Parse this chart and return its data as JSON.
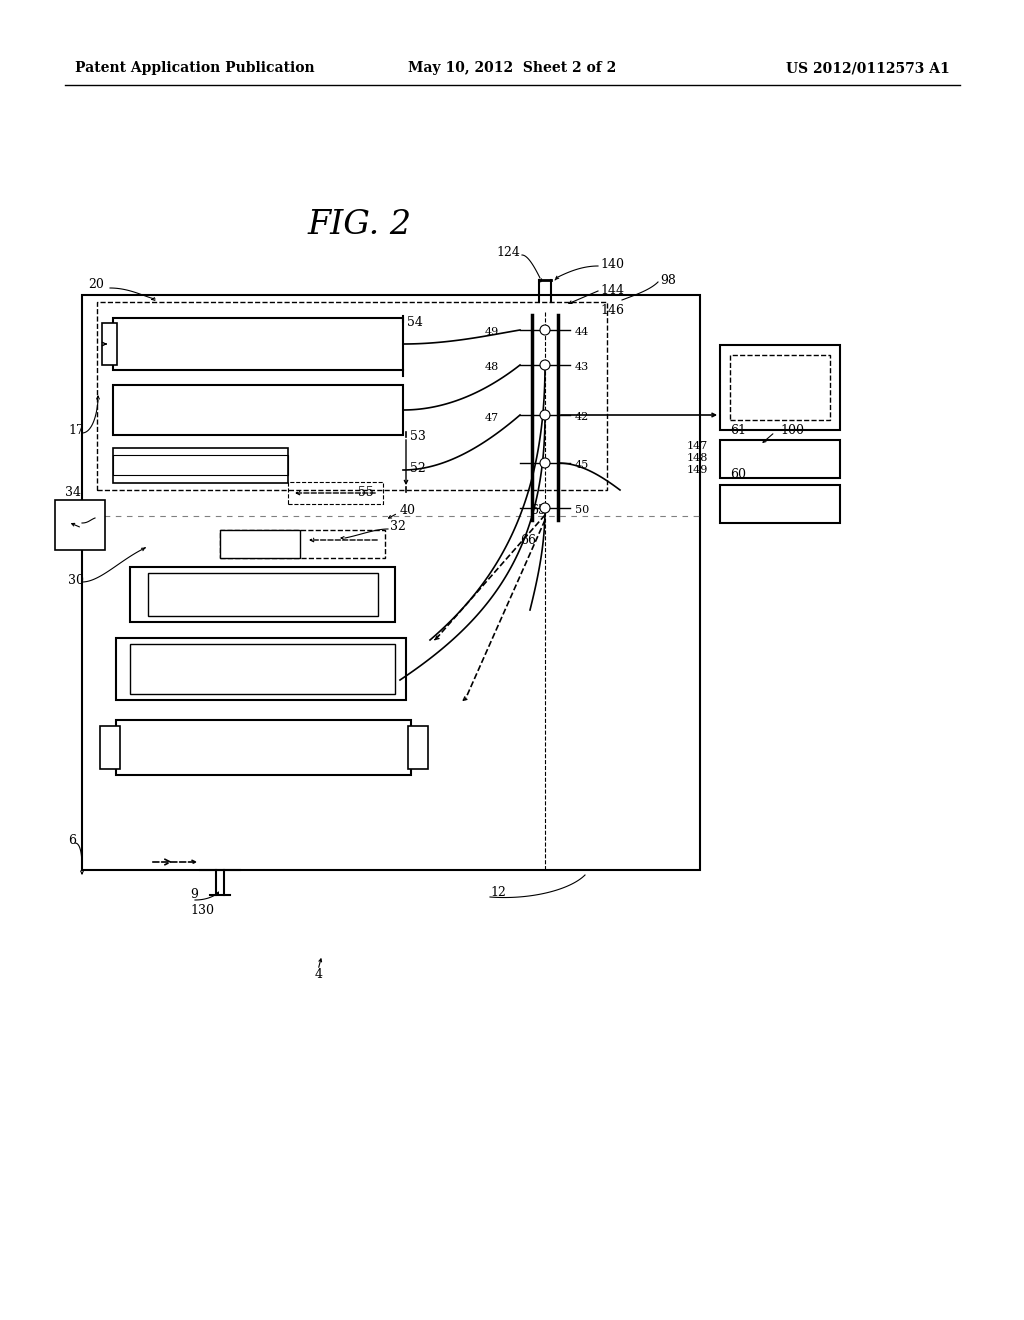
{
  "bg_color": "#ffffff",
  "header_left": "Patent Application Publication",
  "header_center": "May 10, 2012  Sheet 2 of 2",
  "header_right": "US 2012/0112573 A1",
  "fig_title": "FIG. 2"
}
